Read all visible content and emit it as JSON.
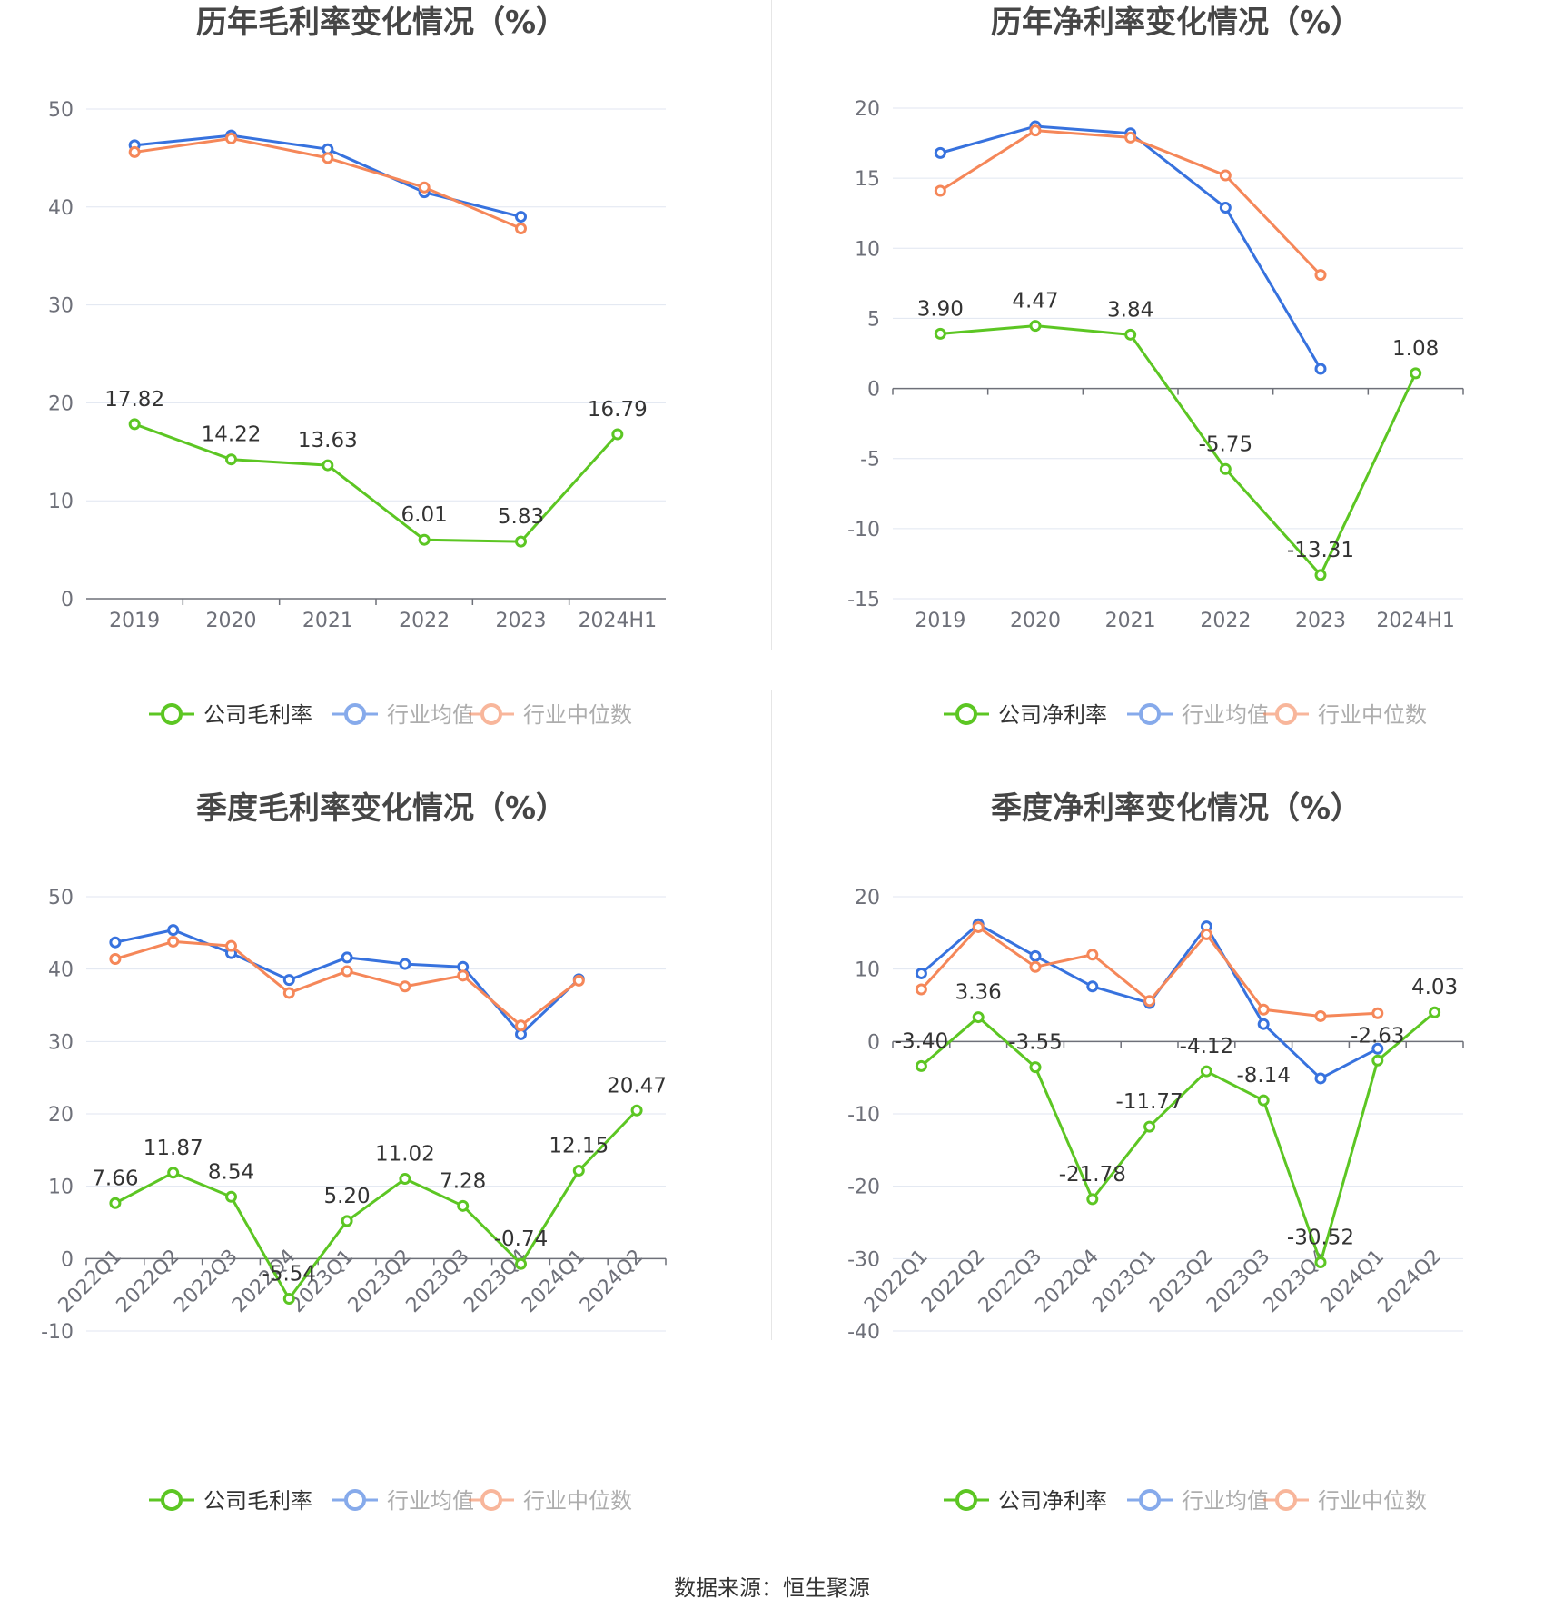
{
  "source_text": "数据来源：恒生聚源",
  "colors": {
    "company": "#5cc623",
    "industry_avg": "#3772de",
    "industry_median": "#f58759",
    "grid": "#e0e6f1",
    "axis": "#6e7079",
    "label": "#333333",
    "title": "#464646"
  },
  "chart_data": [
    {
      "type": "line",
      "title": "历年毛利率变化情况（%）",
      "categories": [
        "2019",
        "2020",
        "2021",
        "2022",
        "2023",
        "2024H1"
      ],
      "ylim": [
        0,
        50
      ],
      "yticks": [
        0,
        10,
        20,
        30,
        40,
        50
      ],
      "grid": true,
      "legend_position": "bottom",
      "series": [
        {
          "name": "公司毛利率",
          "values": [
            17.82,
            14.22,
            13.63,
            6.01,
            5.83,
            16.79
          ],
          "labels": [
            "17.82",
            "14.22",
            "13.63",
            "6.01",
            "5.83",
            "16.79"
          ]
        },
        {
          "name": "行业均值",
          "values": [
            46.3,
            47.3,
            45.9,
            41.5,
            39.0,
            null
          ]
        },
        {
          "name": "行业中位数",
          "values": [
            45.6,
            47.0,
            45.0,
            42.0,
            37.8,
            null
          ]
        }
      ]
    },
    {
      "type": "line",
      "title": "历年净利率变化情况（%）",
      "categories": [
        "2019",
        "2020",
        "2021",
        "2022",
        "2023",
        "2024H1"
      ],
      "ylim": [
        -15,
        20
      ],
      "yticks": [
        -15,
        -10,
        -5,
        0,
        5,
        10,
        15,
        20
      ],
      "grid": true,
      "legend_position": "bottom",
      "series": [
        {
          "name": "公司净利率",
          "values": [
            3.9,
            4.47,
            3.84,
            -5.75,
            -13.31,
            1.08
          ],
          "labels": [
            "3.90",
            "4.47",
            "3.84",
            "-5.75",
            "-13.31",
            "1.08"
          ]
        },
        {
          "name": "行业均值",
          "values": [
            16.8,
            18.7,
            18.2,
            12.9,
            1.4,
            null
          ]
        },
        {
          "name": "行业中位数",
          "values": [
            14.1,
            18.4,
            17.9,
            15.2,
            8.1,
            null
          ]
        }
      ]
    },
    {
      "type": "line",
      "title": "季度毛利率变化情况（%）",
      "categories": [
        "2022Q1",
        "2022Q2",
        "2022Q3",
        "2022Q4",
        "2023Q1",
        "2023Q2",
        "2023Q3",
        "2023Q4",
        "2024Q1",
        "2024Q2"
      ],
      "ylim": [
        -10,
        50
      ],
      "yticks": [
        -10,
        0,
        10,
        20,
        30,
        40,
        50
      ],
      "grid": true,
      "legend_position": "bottom",
      "series": [
        {
          "name": "公司毛利率",
          "values": [
            7.66,
            11.87,
            8.54,
            -5.54,
            5.2,
            11.02,
            7.28,
            -0.74,
            12.15,
            20.47
          ],
          "labels": [
            "7.66",
            "11.87",
            "8.54",
            "-5.54",
            "5.20",
            "11.02",
            "7.28",
            "-0.74",
            "12.15",
            "20.47"
          ]
        },
        {
          "name": "行业均值",
          "values": [
            43.7,
            45.4,
            42.2,
            38.5,
            41.6,
            40.7,
            40.3,
            31.0,
            38.6,
            null
          ]
        },
        {
          "name": "行业中位数",
          "values": [
            41.4,
            43.8,
            43.2,
            36.7,
            39.7,
            37.6,
            39.1,
            32.2,
            38.4,
            null
          ]
        }
      ]
    },
    {
      "type": "line",
      "title": "季度净利率变化情况（%）",
      "categories": [
        "2022Q1",
        "2022Q2",
        "2022Q3",
        "2022Q4",
        "2023Q1",
        "2023Q2",
        "2023Q3",
        "2023Q4",
        "2024Q1",
        "2024Q2"
      ],
      "ylim": [
        -40,
        20
      ],
      "yticks": [
        -40,
        -30,
        -20,
        -10,
        0,
        10,
        20
      ],
      "grid": true,
      "legend_position": "bottom",
      "series": [
        {
          "name": "公司净利率",
          "values": [
            -3.4,
            3.36,
            -3.55,
            -21.78,
            -11.77,
            -4.12,
            -8.14,
            -30.52,
            -2.63,
            4.03
          ],
          "labels": [
            "-3.40",
            "3.36",
            "-3.55",
            "-21.78",
            "-11.77",
            "-4.12",
            "-8.14",
            "-30.52",
            "-2.63",
            "4.03"
          ]
        },
        {
          "name": "行业均值",
          "values": [
            9.4,
            16.2,
            11.8,
            7.6,
            5.3,
            15.9,
            2.4,
            -5.1,
            -1.0,
            null
          ]
        },
        {
          "name": "行业中位数",
          "values": [
            7.2,
            15.8,
            10.3,
            12.0,
            5.6,
            14.8,
            4.4,
            3.5,
            3.9,
            null
          ]
        }
      ]
    }
  ]
}
